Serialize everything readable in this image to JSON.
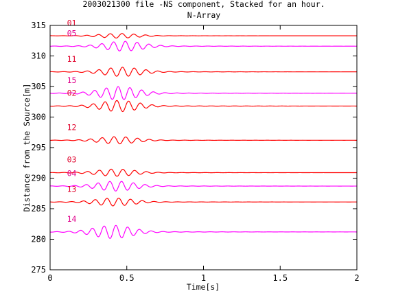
{
  "chart_data": {
    "type": "line",
    "title": "2003021300 file -NS component, Stacked for an hour.",
    "subtitle": "N-Array",
    "xlabel": "Time[s]",
    "ylabel": "Distance from the Source[m]",
    "xlim": [
      0,
      2
    ],
    "ylim": [
      275,
      315
    ],
    "xticks": [
      "0",
      "0.5",
      "1",
      "1.5",
      "2"
    ],
    "yticks": [
      "275",
      "280",
      "285",
      "290",
      "295",
      "300",
      "305",
      "310",
      "315"
    ],
    "grid": false,
    "colors": {
      "red": "#ff0000",
      "magenta": "#ff00ff",
      "label_red": "#e0002a",
      "label_magenta": "#e0008c"
    },
    "series": [
      {
        "name": "01",
        "baseline": 313.3,
        "color": "red",
        "peak_time": 0.45,
        "amplitude": 0.35
      },
      {
        "name": "05",
        "baseline": 311.6,
        "color": "magenta",
        "peak_time": 0.48,
        "amplitude": 0.75
      },
      {
        "name": "11",
        "baseline": 307.4,
        "color": "red",
        "peak_time": 0.47,
        "amplitude": 0.7
      },
      {
        "name": "15",
        "baseline": 303.9,
        "color": "magenta",
        "peak_time": 0.45,
        "amplitude": 1.0
      },
      {
        "name": "02",
        "baseline": 301.8,
        "color": "red",
        "peak_time": 0.45,
        "amplitude": 0.85
      },
      {
        "name": "12",
        "baseline": 296.2,
        "color": "red",
        "peak_time": 0.44,
        "amplitude": 0.55
      },
      {
        "name": "03",
        "baseline": 290.9,
        "color": "red",
        "peak_time": 0.43,
        "amplitude": 0.55
      },
      {
        "name": "04",
        "baseline": 288.7,
        "color": "magenta",
        "peak_time": 0.43,
        "amplitude": 0.75
      },
      {
        "name": "13",
        "baseline": 286.1,
        "color": "red",
        "peak_time": 0.42,
        "amplitude": 0.6
      },
      {
        "name": "14",
        "baseline": 281.2,
        "color": "magenta",
        "peak_time": 0.41,
        "amplitude": 1.0
      }
    ]
  }
}
